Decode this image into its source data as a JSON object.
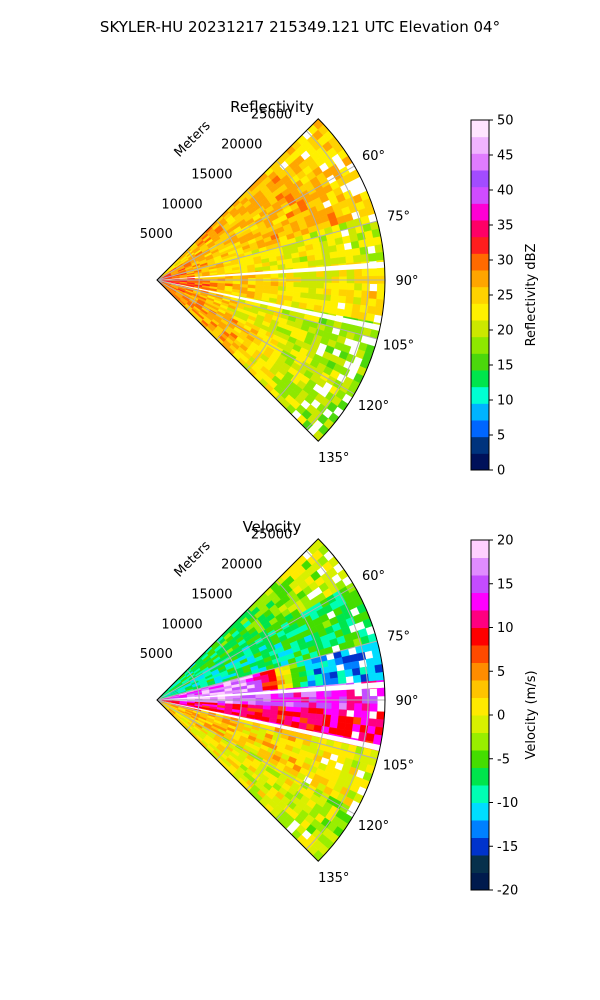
{
  "figure_title": "SKYLER-HU  20231217  215349.121 UTC Elevation 04°",
  "chart_data": [
    {
      "type": "heatmap",
      "subtype": "polar-sector-radar",
      "title": "Reflectivity",
      "radial_label": "Meters",
      "range_ticks": [
        "5000",
        "10000",
        "15000",
        "20000",
        "25000"
      ],
      "range_max": 27000,
      "azimuth_range": [
        45,
        135
      ],
      "azimuth_ticks": [
        "60°",
        "75°",
        "90°",
        "105°",
        "120°",
        "135°"
      ],
      "colorbar": {
        "label": "Reflectivity dBZ",
        "min": 0,
        "max": 50,
        "ticks": [
          "0",
          "5",
          "10",
          "15",
          "20",
          "25",
          "30",
          "35",
          "40",
          "45",
          "50"
        ],
        "colors": [
          "#00115a",
          "#00337d",
          "#0066ff",
          "#00b4ff",
          "#00ffd2",
          "#00e54c",
          "#4bd80c",
          "#8ee800",
          "#cce800",
          "#fff000",
          "#ffd200",
          "#ffa500",
          "#ff6a00",
          "#ff1e1e",
          "#ff0066",
          "#ff00d4",
          "#d04cff",
          "#a24cff",
          "#e07cff",
          "#f0b4ff",
          "#ffe5ff"
        ]
      },
      "sectors": [
        {
          "az": [
            45,
            58
          ],
          "levels": [
            [
              0,
              22
            ],
            [
              0.3,
              27
            ],
            [
              0.65,
              26
            ],
            [
              1,
              24
            ]
          ]
        },
        {
          "az": [
            58,
            73
          ],
          "levels": [
            [
              0,
              30
            ],
            [
              0.35,
              25
            ],
            [
              0.7,
              27
            ],
            [
              1,
              25
            ]
          ]
        },
        {
          "az": [
            73,
            86
          ],
          "levels": [
            [
              0,
              33
            ],
            [
              0.3,
              24
            ],
            [
              0.7,
              21
            ],
            [
              1,
              20
            ]
          ]
        },
        {
          "az": [
            86,
            101
          ],
          "levels": [
            [
              0,
              34
            ],
            [
              0.3,
              26
            ],
            [
              0.7,
              22
            ],
            [
              1,
              24
            ]
          ]
        },
        {
          "az": [
            101,
            118
          ],
          "levels": [
            [
              0,
              31
            ],
            [
              0.4,
              23
            ],
            [
              0.75,
              19
            ],
            [
              1,
              17
            ]
          ]
        },
        {
          "az": [
            118,
            135
          ],
          "levels": [
            [
              0,
              29
            ],
            [
              0.4,
              26
            ],
            [
              0.75,
              20
            ],
            [
              1,
              18
            ]
          ]
        }
      ],
      "beam_gaps_az": [
        86,
        102
      ]
    },
    {
      "type": "heatmap",
      "subtype": "polar-sector-radar",
      "title": "Velocity",
      "radial_label": "Meters",
      "range_ticks": [
        "5000",
        "10000",
        "15000",
        "20000",
        "25000"
      ],
      "range_max": 27000,
      "azimuth_range": [
        45,
        135
      ],
      "azimuth_ticks": [
        "60°",
        "75°",
        "90°",
        "105°",
        "120°",
        "135°"
      ],
      "colorbar": {
        "label": "Velocity (m/s)",
        "min": -20,
        "max": 20,
        "ticks": [
          "-20",
          "-15",
          "-10",
          "-5",
          "0",
          "5",
          "10",
          "15",
          "20"
        ],
        "colors": [
          "#001a4d",
          "#06304c",
          "#0033cc",
          "#0080ff",
          "#00ddff",
          "#00ffb4",
          "#00e54c",
          "#44dd00",
          "#99ee00",
          "#d8f000",
          "#ffea00",
          "#ffc400",
          "#ff8c00",
          "#ff4a00",
          "#ff0000",
          "#ff0080",
          "#ff00ff",
          "#c44cff",
          "#e08cff",
          "#ffd0ff"
        ]
      },
      "sectors": [
        {
          "az": [
            45,
            60
          ],
          "levels": [
            [
              0,
              -8
            ],
            [
              0.5,
              -6
            ],
            [
              1,
              0
            ]
          ]
        },
        {
          "az": [
            60,
            75
          ],
          "levels": [
            [
              0,
              -9
            ],
            [
              0.5,
              -8
            ],
            [
              1,
              -6
            ]
          ]
        },
        {
          "az": [
            75,
            85
          ],
          "levels": [
            [
              0,
              14
            ],
            [
              0.4,
              18
            ],
            [
              0.7,
              -12
            ],
            [
              1,
              -12
            ]
          ]
        },
        {
          "az": [
            85,
            93
          ],
          "levels": [
            [
              0,
              18
            ],
            [
              0.5,
              15
            ],
            [
              1,
              13
            ]
          ]
        },
        {
          "az": [
            93,
            103
          ],
          "levels": [
            [
              0,
              10
            ],
            [
              0.5,
              10
            ],
            [
              1,
              11
            ]
          ]
        },
        {
          "az": [
            103,
            120
          ],
          "levels": [
            [
              0,
              4
            ],
            [
              0.5,
              2
            ],
            [
              1,
              0
            ]
          ]
        },
        {
          "az": [
            120,
            135
          ],
          "levels": [
            [
              0,
              2
            ],
            [
              0.5,
              0
            ],
            [
              1,
              -2
            ]
          ]
        }
      ],
      "beam_gaps_az": [
        86,
        102
      ]
    }
  ]
}
